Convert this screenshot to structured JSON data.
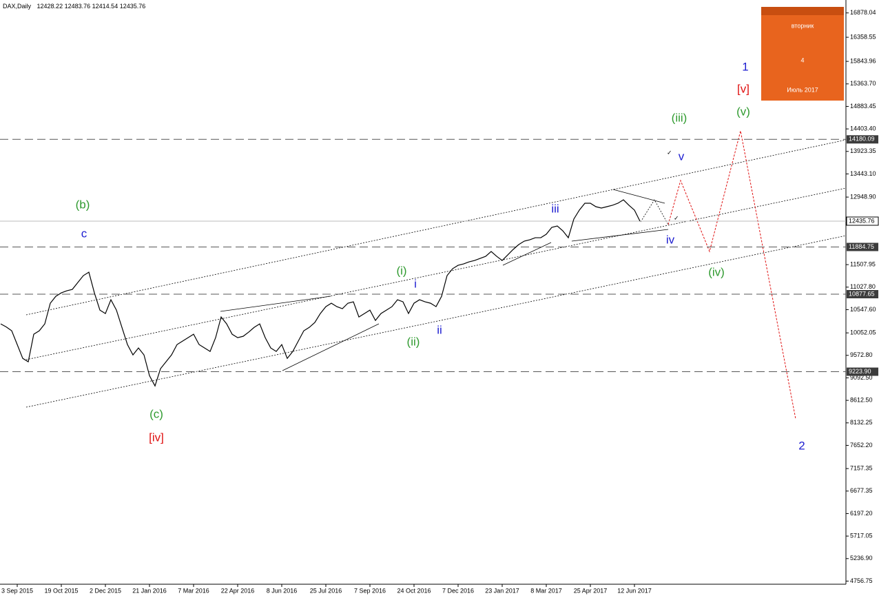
{
  "chart_data": {
    "type": "line",
    "title": "DAX,Daily",
    "ohlc_header": [
      12428.22,
      12483.76,
      12414.54,
      12435.76
    ],
    "color": "#000000",
    "categories": [
      null,
      null,
      null,
      "3 Sep 2015",
      null,
      null,
      null,
      null,
      null,
      null,
      null,
      "19 Oct 2015",
      null,
      null,
      null,
      null,
      null,
      null,
      null,
      "2 Dec 2015",
      null,
      null,
      null,
      null,
      null,
      null,
      null,
      "21 Jan 2016",
      null,
      null,
      null,
      null,
      null,
      null,
      null,
      "7 Mar 2016",
      null,
      null,
      null,
      null,
      null,
      null,
      null,
      "22 Apr 2016",
      null,
      null,
      null,
      null,
      null,
      null,
      null,
      "8 Jun 2016",
      null,
      null,
      null,
      null,
      null,
      null,
      null,
      "25 Jul 2016",
      null,
      null,
      null,
      null,
      null,
      null,
      null,
      "7 Sep 2016",
      null,
      null,
      null,
      null,
      null,
      null,
      null,
      "24 Oct 2016",
      null,
      null,
      null,
      null,
      null,
      null,
      null,
      "7 Dec 2016",
      null,
      null,
      null,
      null,
      null,
      null,
      null,
      "23 Jan 2017",
      null,
      null,
      null,
      null,
      null,
      null,
      null,
      "8 Mar 2017",
      null,
      null,
      null,
      null,
      null,
      null,
      null,
      "25 Apr 2017",
      null,
      null,
      null,
      null,
      null,
      null,
      null,
      "12 Jun 2017",
      null
    ],
    "values": [
      10244,
      10180,
      10097,
      9803,
      9508,
      9435,
      10023,
      10097,
      10244,
      10685,
      10832,
      10906,
      10950,
      10980,
      11127,
      11274,
      11347,
      10906,
      10538,
      10465,
      10759,
      10538,
      10170,
      9803,
      9582,
      9730,
      9582,
      9140,
      8920,
      9288,
      9435,
      9582,
      9803,
      9876,
      9950,
      10023,
      9803,
      9730,
      9656,
      9950,
      10391,
      10244,
      10023,
      9950,
      9979,
      10068,
      10170,
      10244,
      9950,
      9730,
      9656,
      9803,
      9508,
      9656,
      9876,
      10097,
      10170,
      10274,
      10465,
      10612,
      10685,
      10612,
      10568,
      10685,
      10715,
      10391,
      10465,
      10538,
      10317,
      10465,
      10538,
      10612,
      10759,
      10715,
      10465,
      10685,
      10759,
      10715,
      10685,
      10612,
      10832,
      11274,
      11421,
      11494,
      11524,
      11568,
      11597,
      11641,
      11685,
      11788,
      11685,
      11597,
      11715,
      11833,
      11936,
      12009,
      12038,
      12082,
      12082,
      12156,
      12303,
      12332,
      12229,
      12082,
      12480,
      12671,
      12818,
      12818,
      12744,
      12715,
      12744,
      12774,
      12818,
      12891,
      12774,
      12671,
      12435.76
    ],
    "ylim": [
      4690,
      17080
    ],
    "yticks": [
      16878.04,
      16358.55,
      15843.96,
      {
        "value": 15363.7,
        "label": "15363.70"
      },
      14883.45,
      {
        "value": 14403.4,
        "label": "14403.40"
      },
      13923.35,
      {
        "value": 13443.1,
        "label": "13443.10"
      },
      {
        "value": 12948.9,
        "label": "12948.90"
      },
      11507.95,
      {
        "value": 11027.8,
        "label": "11027.80"
      },
      {
        "value": 10547.6,
        "label": "10547.60"
      },
      10052.05,
      {
        "value": 9572.8,
        "label": "9572.80"
      },
      {
        "value": 9092.5,
        "label": "9092.50"
      },
      {
        "value": 8612.5,
        "label": "8612.50"
      },
      8132.25,
      {
        "value": 7652.2,
        "label": "7652.20"
      },
      7157.35,
      6677.35,
      {
        "value": 6197.2,
        "label": "6197.20"
      },
      5717.05,
      {
        "value": 5236.9,
        "label": "5236.90"
      },
      4756.75
    ],
    "levels": [
      14180.09,
      11884.75,
      10877.65,
      {
        "value": 9223.9,
        "label": "9223.90"
      }
    ],
    "current_price": 12435.76,
    "annotations": [
      "(b)",
      "c",
      "(c)",
      "[iv]",
      "(i)",
      "i",
      "(ii)",
      "ii",
      "iii",
      "(iii)",
      "v",
      "iv",
      "(iv)",
      "(v)",
      "1",
      "[v]",
      "2"
    ]
  },
  "calendar": {
    "weekday": "вторник",
    "day": 4,
    "month": "Июль 2017"
  }
}
